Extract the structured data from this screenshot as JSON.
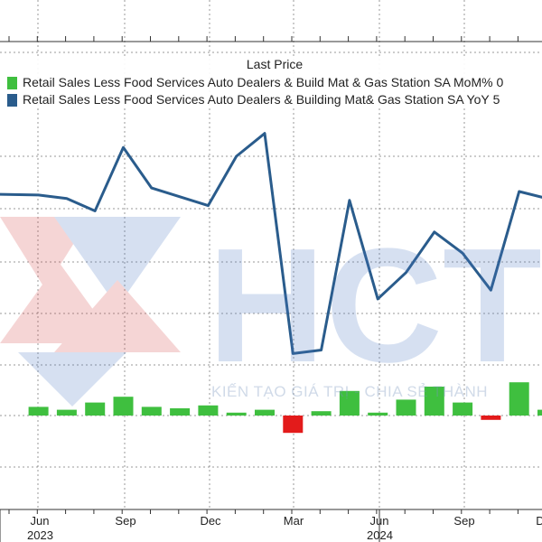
{
  "chart_data": {
    "type": "bar",
    "title": "Last Price",
    "x": [
      "2023-04",
      "2023-05",
      "2023-06",
      "2023-07",
      "2023-08",
      "2023-09",
      "2023-10",
      "2023-11",
      "2023-12",
      "2024-01",
      "2024-02",
      "2024-03",
      "2024-04",
      "2024-05",
      "2024-06",
      "2024-07",
      "2024-08",
      "2024-09",
      "2024-10",
      "2024-11",
      "2024-12"
    ],
    "x_tick_labels": [
      "Jun",
      "Sep",
      "Dec",
      "Mar",
      "Jun",
      "Sep",
      "D"
    ],
    "year_labels": [
      "2023",
      "2024"
    ],
    "series": [
      {
        "name": "Retail Sales Less Food Services Auto Dealers & Build Mat & Gas Station SA MoM%",
        "legend_suffix": "0",
        "type": "bar",
        "color": "#3fbf3f",
        "negative_color": "#e31b1b",
        "values": [
          0.6,
          0.4,
          0.9,
          1.3,
          0.6,
          0.5,
          0.7,
          0.2,
          0.4,
          -1.2,
          0.3,
          1.7,
          0.2,
          1.1,
          2.0,
          0.9,
          -0.3,
          2.3,
          0.4,
          0.05,
          1.8
        ]
      },
      {
        "name": "Retail Sales Less Food Services Auto Dealers & Building Mat& Gas Station SA YoY",
        "legend_suffix": "5",
        "type": "line",
        "color": "#2a5c8c",
        "values": [
          3.8,
          3.6,
          2.9,
          6.5,
          4.2,
          3.7,
          3.2,
          6.0,
          7.3,
          -5.2,
          -5.0,
          3.5,
          -2.1,
          -0.6,
          1.7,
          0.5,
          -1.6,
          4.0,
          3.6,
          3.1,
          6.5
        ]
      }
    ],
    "grid": true,
    "legend_position": "top"
  },
  "watermark": {
    "text": "KIẾN TẠO GIÁ TRỊ - CHIA SẺ THÀNH",
    "logo": "HCT"
  }
}
